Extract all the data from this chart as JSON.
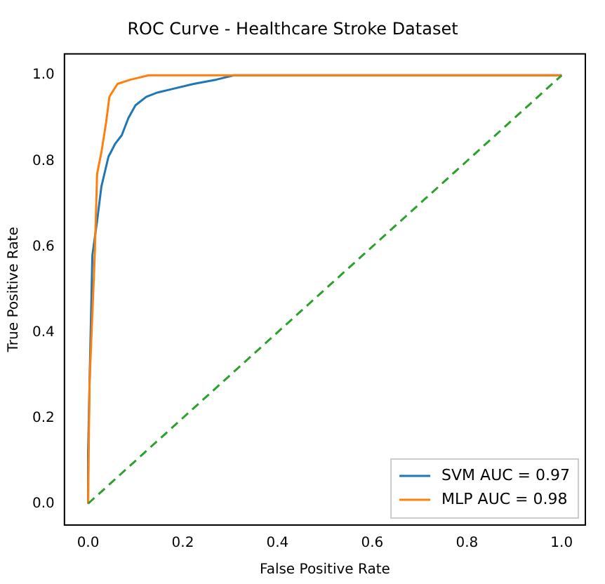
{
  "chart_data": {
    "type": "line",
    "title": "ROC Curve - Healthcare Stroke Dataset",
    "xlabel": "False Positive Rate",
    "ylabel": "True Positive Rate",
    "xlim": [
      -0.05,
      1.05
    ],
    "ylim": [
      -0.05,
      1.05
    ],
    "xticks": [
      {
        "value": 0,
        "label": "0.0"
      },
      {
        "value": 0.2,
        "label": "0.2"
      },
      {
        "value": 0.4,
        "label": "0.4"
      },
      {
        "value": 0.6,
        "label": "0.6"
      },
      {
        "value": 0.8,
        "label": "0.8"
      },
      {
        "value": 1,
        "label": "1.0"
      }
    ],
    "yticks": [
      {
        "value": 0,
        "label": "0.0"
      },
      {
        "value": 0.2,
        "label": "0.2"
      },
      {
        "value": 0.4,
        "label": "0.4"
      },
      {
        "value": 0.6,
        "label": "0.6"
      },
      {
        "value": 0.8,
        "label": "0.8"
      },
      {
        "value": 1,
        "label": "1.0"
      }
    ],
    "grid": false,
    "legend": "bottom right",
    "marker": "none",
    "series": [
      {
        "name": "SVM AUC = 0.97",
        "color": "#1f77b4",
        "line_style": "solid",
        "x": [
          0,
          0,
          0.003,
          0.009,
          0.019,
          0.028,
          0.043,
          0.057,
          0.071,
          0.085,
          0.1,
          0.123,
          0.147,
          0.185,
          0.223,
          0.271,
          0.308,
          1
        ],
        "values": [
          0,
          0.12,
          0.28,
          0.58,
          0.66,
          0.74,
          0.81,
          0.84,
          0.86,
          0.9,
          0.93,
          0.95,
          0.96,
          0.97,
          0.98,
          0.99,
          1,
          1
        ]
      },
      {
        "name": "MLP AUC = 0.98",
        "color": "#ff7f0e",
        "line_style": "solid",
        "x": [
          0,
          0.003,
          0.014,
          0.019,
          0.028,
          0.038,
          0.045,
          0.062,
          0.09,
          0.128,
          1
        ],
        "values": [
          0,
          0.28,
          0.58,
          0.77,
          0.82,
          0.89,
          0.95,
          0.98,
          0.99,
          1,
          1
        ]
      },
      {
        "color": "#2ca02c",
        "line_style": "dashed",
        "x": [
          0,
          1
        ],
        "values": [
          0,
          1
        ]
      }
    ]
  }
}
